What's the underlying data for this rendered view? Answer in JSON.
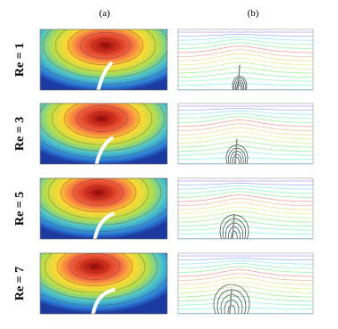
{
  "column_labels": [
    "(a)",
    "(b)"
  ],
  "rows": [
    {
      "label": "Re = 1"
    },
    {
      "label": "Re = 3"
    },
    {
      "label": "Re = 5"
    },
    {
      "label": "Re = 7"
    }
  ]
}
